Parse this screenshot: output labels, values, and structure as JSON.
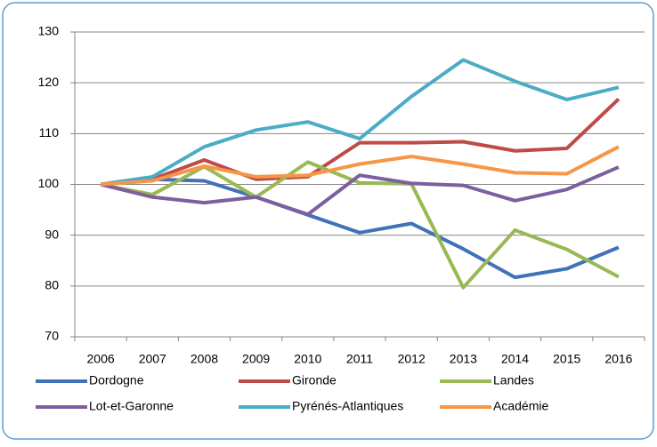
{
  "chart_data": {
    "type": "line",
    "categories": [
      "2006",
      "2007",
      "2008",
      "2009",
      "2010",
      "2011",
      "2012",
      "2013",
      "2014",
      "2015",
      "2016"
    ],
    "series": [
      {
        "name": "Dordogne",
        "color": "#4172b8",
        "values": [
          100,
          101,
          100.7,
          97.5,
          94,
          90.5,
          92.3,
          87.3,
          81.7,
          83.4,
          87.6
        ]
      },
      {
        "name": "Gironde",
        "color": "#be4b48",
        "values": [
          100,
          101,
          104.8,
          101,
          101.5,
          108.2,
          108.2,
          108.4,
          106.6,
          107.1,
          116.8
        ]
      },
      {
        "name": "Landes",
        "color": "#98b954",
        "values": [
          100,
          98,
          103.5,
          97.5,
          104.4,
          100.3,
          100.1,
          79.7,
          91,
          87.2,
          81.8
        ]
      },
      {
        "name": "Lot-et-Garonne",
        "color": "#7d5fa0",
        "values": [
          100,
          97.5,
          96.4,
          97.5,
          94.1,
          101.8,
          100.2,
          99.8,
          96.8,
          99,
          103.4
        ]
      },
      {
        "name": "Pyrénés-Atlantiques",
        "color": "#4bacc6",
        "values": [
          100,
          101.5,
          107.4,
          110.7,
          112.3,
          109,
          117.3,
          124.5,
          120.3,
          116.7,
          119.1
        ]
      },
      {
        "name": "Académie",
        "color": "#f79646",
        "values": [
          100,
          100.7,
          103.6,
          101.5,
          101.8,
          104,
          105.5,
          104,
          102.3,
          102.1,
          107.4
        ]
      }
    ],
    "ylim": [
      70,
      130
    ],
    "yticks": [
      70,
      80,
      90,
      100,
      110,
      120,
      130
    ],
    "grid": true,
    "legend": "bottom"
  }
}
